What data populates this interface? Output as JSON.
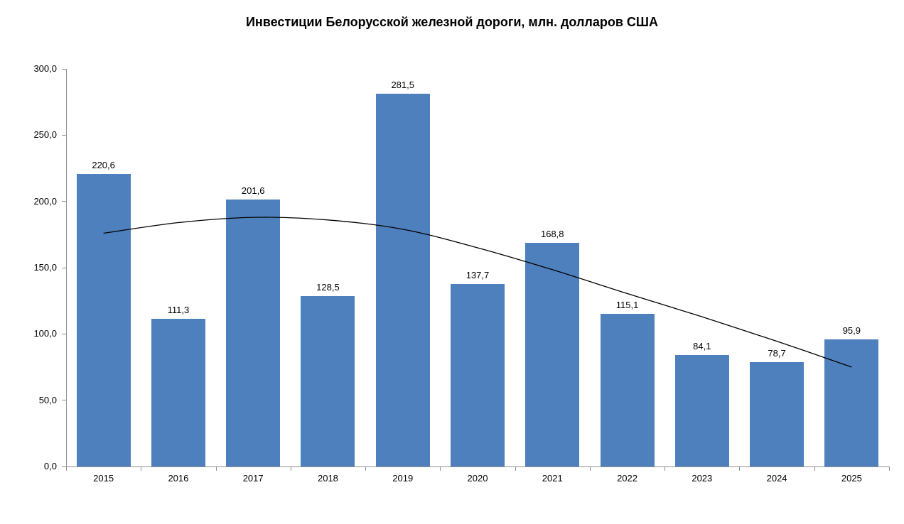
{
  "chart_data": {
    "type": "bar",
    "title": "Инвестиции Белорусской железной дороги, млн. долларов США",
    "categories": [
      "2015",
      "2016",
      "2017",
      "2018",
      "2019",
      "2020",
      "2021",
      "2022",
      "2023",
      "2024",
      "2025"
    ],
    "series": [
      {
        "values": [
          220.6,
          111.3,
          201.6,
          128.5,
          281.5,
          137.7,
          168.8,
          115.1,
          84.1,
          78.7,
          95.9
        ],
        "labels": [
          "220,6",
          "111,3",
          "201,6",
          "128,5",
          "281,5",
          "137,7",
          "168,8",
          "115,1",
          "84,1",
          "78,7",
          "95,9"
        ],
        "color": "#4E80BD"
      }
    ],
    "trendline": {
      "shape": "polynomial",
      "color": "#000000",
      "values": [
        176,
        184,
        188,
        186,
        179,
        165,
        148.5,
        130.5,
        113,
        94.5,
        75
      ]
    },
    "y_axis": {
      "min": 0,
      "max": 300,
      "step": 50,
      "tick_labels": [
        "0,0",
        "50,0",
        "100,0",
        "150,0",
        "200,0",
        "250,0",
        "300,0"
      ]
    },
    "grid": false,
    "legend": "none",
    "decimal_separator": ","
  },
  "colors": {
    "bar": "#4E80BD",
    "trendline": "#000000",
    "axis": "#8f8f8f",
    "text": "#000000",
    "background": "#ffffff"
  }
}
